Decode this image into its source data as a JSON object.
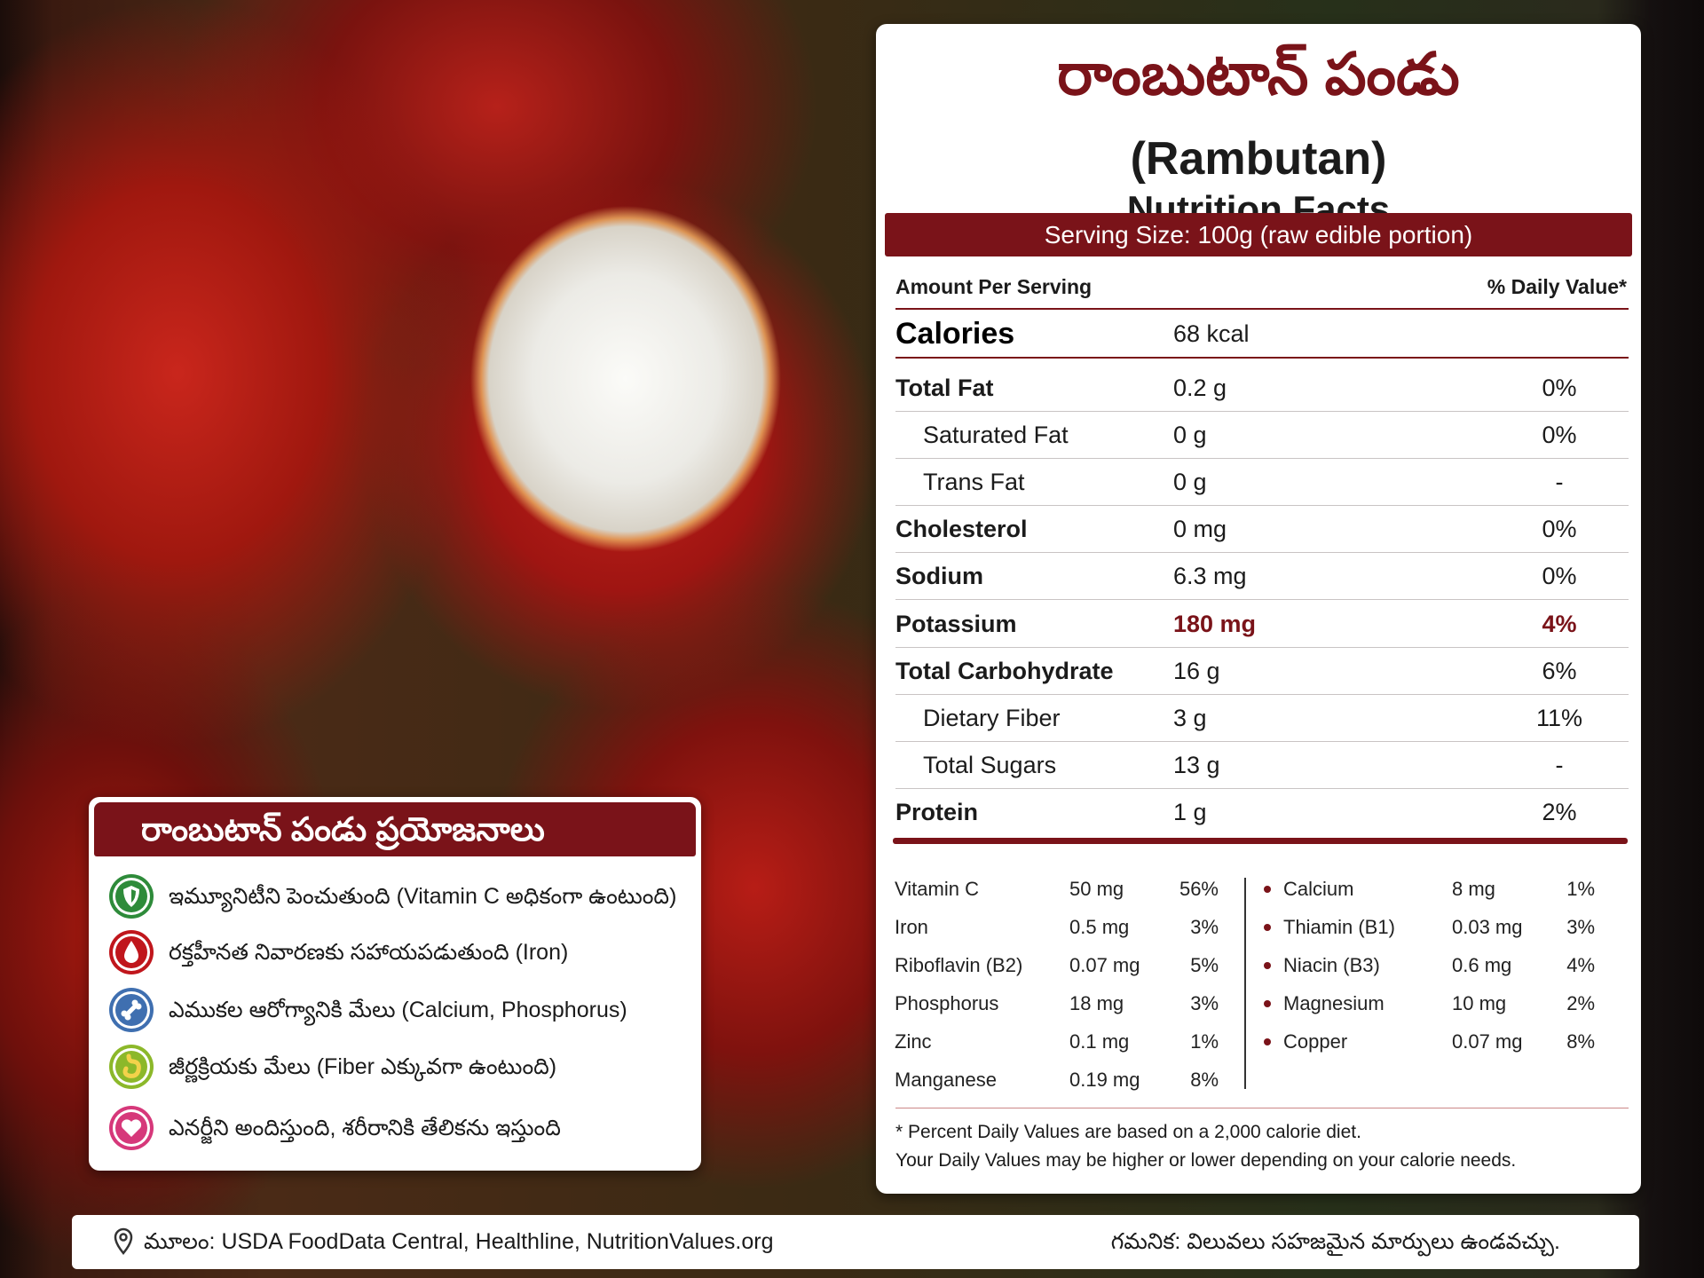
{
  "nutrition_panel": {
    "title_telugu": "రాంబుటాన్ పండు",
    "title_english": "(Rambutan)",
    "subtitle": "Nutrition Facts",
    "serving_size": "Serving Size: 100g (raw edible portion)",
    "header": {
      "amount": "Amount Per Serving",
      "daily_value": "% Daily Value*"
    },
    "calories": {
      "label": "Calories",
      "value": "68 kcal"
    },
    "rows": [
      {
        "label": "Total Fat",
        "amount": "0.2 g",
        "dv": "0%",
        "sub": [
          {
            "label": "Saturated Fat",
            "amount": "0 g",
            "dv": "0%"
          },
          {
            "label": "Trans Fat",
            "amount": "0 g",
            "dv": "-"
          }
        ]
      },
      {
        "label": "Cholesterol",
        "amount": "0 mg",
        "dv": "0%"
      },
      {
        "label": "Sodium",
        "amount": "6.3 mg",
        "dv": "0%"
      },
      {
        "label": "Potassium",
        "amount": "180 mg",
        "dv": "4%"
      },
      {
        "label": "Total Carbohydrate",
        "amount": "16 g",
        "dv": "6%",
        "sub": [
          {
            "label": "Dietary Fiber",
            "amount": "3 g",
            "dv": "11%"
          },
          {
            "label": "Total Sugars",
            "amount": "13 g",
            "dv": "-"
          }
        ]
      },
      {
        "label": "Protein",
        "amount": "1 g",
        "dv": "2%"
      }
    ],
    "vitamins_left": [
      {
        "name": "Vitamin C",
        "amount": "50 mg",
        "dv": "56%"
      },
      {
        "name": "Iron",
        "amount": "0.5 mg",
        "dv": "3%"
      },
      {
        "name": "Riboflavin (B2)",
        "amount": "0.07 mg",
        "dv": "5%"
      },
      {
        "name": "Phosphorus",
        "amount": "18 mg",
        "dv": "3%"
      },
      {
        "name": "Zinc",
        "amount": "0.1 mg",
        "dv": "1%"
      },
      {
        "name": "Manganese",
        "amount": "0.19 mg",
        "dv": "8%"
      }
    ],
    "vitamins_right": [
      {
        "name": "Calcium",
        "amount": "8 mg",
        "dv": "1%"
      },
      {
        "name": "Thiamin (B1)",
        "amount": "0.03 mg",
        "dv": "3%"
      },
      {
        "name": "Niacin (B3)",
        "amount": "0.6 mg",
        "dv": "4%"
      },
      {
        "name": "Magnesium",
        "amount": "10 mg",
        "dv": "2%"
      },
      {
        "name": "Copper",
        "amount": "0.07 mg",
        "dv": "8%"
      }
    ],
    "footnote": [
      "* Percent Daily Values are based on a 2,000 calorie diet.",
      "Your Daily Values may be higher or lower depending on your calorie needs."
    ]
  },
  "benefits": {
    "title": "రాంబుటాన్ పండు ప్రయోజనాలు",
    "items": [
      "ఇమ్యూనిటీని పెంచుతుంది (Vitamin C అధికంగా ఉంటుంది)",
      "రక్తహీనత నివారణకు సహాయపడుతుంది (Iron)",
      "ఎముకల ఆరోగ్యానికి మేలు (Calcium, Phosphorus)",
      "జీర్ణక్రియకు మేలు (Fiber ఎక్కువగా ఉంటుంది)",
      "ఎనర్జీని అందిస్తుంది, శరీరానికి తేలికను ఇస్తుంది"
    ]
  },
  "footer": {
    "source": "మూలం: USDA FoodData Central, Healthline, NutritionValues.org",
    "note": "గమనిక: విలువలు సహజమైన మార్పులు ఉండవచ్చు."
  }
}
